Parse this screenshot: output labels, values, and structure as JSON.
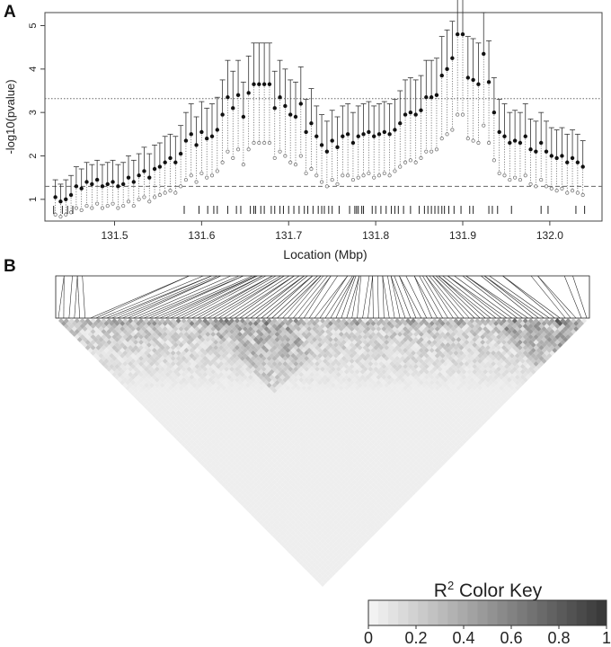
{
  "panels": {
    "a": {
      "letter": "A"
    },
    "b": {
      "letter": "B"
    }
  },
  "colors": {
    "axis": "#444444",
    "point": "#111111",
    "lower_point": "#777777",
    "threshold_line": "#666666",
    "heat_low": "#f2f2f2",
    "heat_high": "#3a3a3a"
  },
  "chart_data": [
    {
      "type": "scatter",
      "panel": "A",
      "xlabel": "Location (Mbp)",
      "ylabel": "-log10(pvalue)",
      "xlim": [
        131.42,
        132.06
      ],
      "ylim": [
        0.5,
        5.3
      ],
      "xticks": [
        131.5,
        131.6,
        131.7,
        131.8,
        131.9,
        132.0
      ],
      "xtick_labels": [
        "131.5",
        "131.6",
        "131.7",
        "131.8",
        "131.9",
        "132.0"
      ],
      "yticks": [
        1,
        2,
        3,
        4,
        5
      ],
      "ytick_labels": [
        "1",
        "2",
        "3",
        "4",
        "5"
      ],
      "grid": false,
      "legend": "none",
      "reference_lines": [
        {
          "y": 3.32,
          "style": "dotted"
        },
        {
          "y": 1.3,
          "style": "dashed"
        }
      ],
      "series": [
        {
          "x": [
            131.432,
            131.438,
            131.444,
            131.45,
            131.456,
            131.462,
            131.468,
            131.474,
            131.48,
            131.486,
            131.492,
            131.498,
            131.504,
            131.51,
            131.516,
            131.522,
            131.528,
            131.534,
            131.54,
            131.546,
            131.552,
            131.558,
            131.564,
            131.57,
            131.576,
            131.582,
            131.588,
            131.594,
            131.6,
            131.606,
            131.612,
            131.618,
            131.624,
            131.63,
            131.636,
            131.642,
            131.648,
            131.654,
            131.66,
            131.666,
            131.672,
            131.678,
            131.684,
            131.69,
            131.696,
            131.702,
            131.708,
            131.714,
            131.72,
            131.726,
            131.732,
            131.738,
            131.744,
            131.75,
            131.756,
            131.762,
            131.768,
            131.774,
            131.78,
            131.786,
            131.792,
            131.798,
            131.804,
            131.81,
            131.816,
            131.822,
            131.828,
            131.834,
            131.84,
            131.846,
            131.852,
            131.858,
            131.864,
            131.87,
            131.876,
            131.882,
            131.888,
            131.894,
            131.9,
            131.906,
            131.912,
            131.918,
            131.924,
            131.93,
            131.936,
            131.942,
            131.948,
            131.954,
            131.96,
            131.966,
            131.972,
            131.978,
            131.984,
            131.99,
            131.996,
            132.002,
            132.008,
            132.014,
            132.02,
            132.026,
            132.032,
            132.038
          ],
          "y": [
            1.05,
            0.95,
            1.0,
            1.1,
            1.3,
            1.25,
            1.4,
            1.35,
            1.45,
            1.3,
            1.35,
            1.4,
            1.3,
            1.35,
            1.5,
            1.4,
            1.55,
            1.65,
            1.5,
            1.7,
            1.75,
            1.85,
            1.95,
            1.85,
            2.05,
            2.35,
            2.5,
            2.25,
            2.55,
            2.4,
            2.45,
            2.6,
            2.95,
            3.35,
            3.1,
            3.4,
            2.9,
            3.45,
            3.65,
            3.65,
            3.65,
            3.65,
            3.1,
            3.35,
            3.15,
            2.95,
            2.9,
            3.2,
            2.55,
            2.75,
            2.45,
            2.25,
            2.1,
            2.35,
            2.2,
            2.45,
            2.5,
            2.3,
            2.45,
            2.5,
            2.55,
            2.45,
            2.5,
            2.55,
            2.5,
            2.6,
            2.75,
            2.95,
            3.0,
            2.95,
            3.05,
            3.35,
            3.35,
            3.4,
            3.85,
            4.0,
            4.25,
            4.8,
            4.8,
            3.8,
            3.75,
            3.65,
            4.35,
            3.7,
            3.0,
            2.55,
            2.45,
            2.3,
            2.35,
            2.3,
            2.45,
            2.15,
            2.1,
            2.3,
            2.1,
            2.0,
            1.95,
            2.0,
            1.85,
            1.95,
            1.85,
            1.75
          ],
          "y_upper": [
            1.45,
            1.35,
            1.45,
            1.55,
            1.75,
            1.7,
            1.85,
            1.8,
            1.9,
            1.8,
            1.85,
            1.9,
            1.8,
            1.85,
            2.0,
            1.9,
            2.05,
            2.2,
            2.05,
            2.25,
            2.3,
            2.45,
            2.5,
            2.45,
            2.7,
            3.0,
            3.2,
            2.9,
            3.25,
            3.1,
            3.2,
            3.35,
            3.75,
            4.2,
            3.95,
            4.2,
            3.7,
            4.3,
            4.6,
            4.6,
            4.6,
            4.6,
            3.95,
            4.2,
            4.0,
            3.75,
            3.7,
            4.05,
            3.3,
            3.55,
            3.15,
            2.95,
            2.8,
            3.05,
            2.9,
            3.15,
            3.2,
            3.0,
            3.15,
            3.2,
            3.25,
            3.15,
            3.2,
            3.25,
            3.2,
            3.3,
            3.5,
            3.75,
            3.8,
            3.75,
            3.85,
            4.2,
            4.2,
            4.25,
            4.75,
            4.9,
            5.1,
            5.75,
            5.75,
            4.75,
            4.7,
            4.6,
            5.3,
            4.65,
            3.8,
            3.3,
            3.2,
            3.0,
            3.05,
            3.0,
            3.2,
            2.85,
            2.8,
            3.0,
            2.8,
            2.65,
            2.6,
            2.65,
            2.5,
            2.6,
            2.5,
            2.35
          ],
          "y_lower": [
            0.65,
            0.6,
            0.65,
            0.7,
            0.8,
            0.75,
            0.85,
            0.8,
            0.9,
            0.8,
            0.85,
            0.9,
            0.8,
            0.85,
            0.95,
            0.85,
            1.0,
            1.05,
            0.95,
            1.05,
            1.1,
            1.15,
            1.2,
            1.15,
            1.3,
            1.45,
            1.55,
            1.4,
            1.6,
            1.5,
            1.55,
            1.65,
            1.85,
            2.1,
            1.95,
            2.15,
            1.8,
            2.15,
            2.3,
            2.3,
            2.3,
            2.3,
            1.95,
            2.1,
            2.0,
            1.85,
            1.8,
            2.0,
            1.6,
            1.7,
            1.55,
            1.4,
            1.3,
            1.45,
            1.35,
            1.55,
            1.55,
            1.45,
            1.5,
            1.55,
            1.6,
            1.5,
            1.55,
            1.6,
            1.55,
            1.65,
            1.75,
            1.85,
            1.9,
            1.85,
            1.95,
            2.1,
            2.1,
            2.15,
            2.4,
            2.5,
            2.6,
            2.95,
            2.95,
            2.4,
            2.35,
            2.3,
            2.7,
            2.3,
            1.9,
            1.6,
            1.55,
            1.45,
            1.5,
            1.45,
            1.55,
            1.35,
            1.3,
            1.45,
            1.3,
            1.25,
            1.2,
            1.25,
            1.15,
            1.2,
            1.15,
            1.1
          ]
        }
      ],
      "rug": {
        "positions": [
          131.43,
          131.44,
          131.446,
          131.452,
          131.58,
          131.597,
          131.607,
          131.614,
          131.618,
          131.63,
          131.64,
          131.645,
          131.656,
          131.66,
          131.662,
          131.668,
          131.672,
          131.68,
          131.684,
          131.69,
          131.694,
          131.7,
          131.706,
          131.712,
          131.718,
          131.722,
          131.728,
          131.734,
          131.738,
          131.741,
          131.746,
          131.75,
          131.758,
          131.77,
          131.776,
          131.778,
          131.78,
          131.784,
          131.786,
          131.796,
          131.8,
          131.806,
          131.812,
          131.818,
          131.822,
          131.826,
          131.832,
          131.84,
          131.85,
          131.856,
          131.86,
          131.864,
          131.868,
          131.872,
          131.876,
          131.879,
          131.884,
          131.89,
          131.898,
          131.908,
          131.912,
          131.93,
          131.934,
          131.94,
          131.956,
          131.99,
          131.998,
          132.03,
          132.04
        ]
      }
    },
    {
      "type": "heatmap",
      "panel": "B",
      "value_type": "R2",
      "n_snps": 100,
      "color_key": {
        "label_base": "R",
        "label_sup": "2",
        "label_rest": " Color Key",
        "ticks": [
          0,
          0.2,
          0.4,
          0.6,
          0.8,
          1
        ],
        "tick_labels": [
          "0",
          "0.2",
          "0.4",
          "0.6",
          "0.8",
          "1"
        ],
        "range": [
          0,
          1
        ]
      }
    }
  ]
}
